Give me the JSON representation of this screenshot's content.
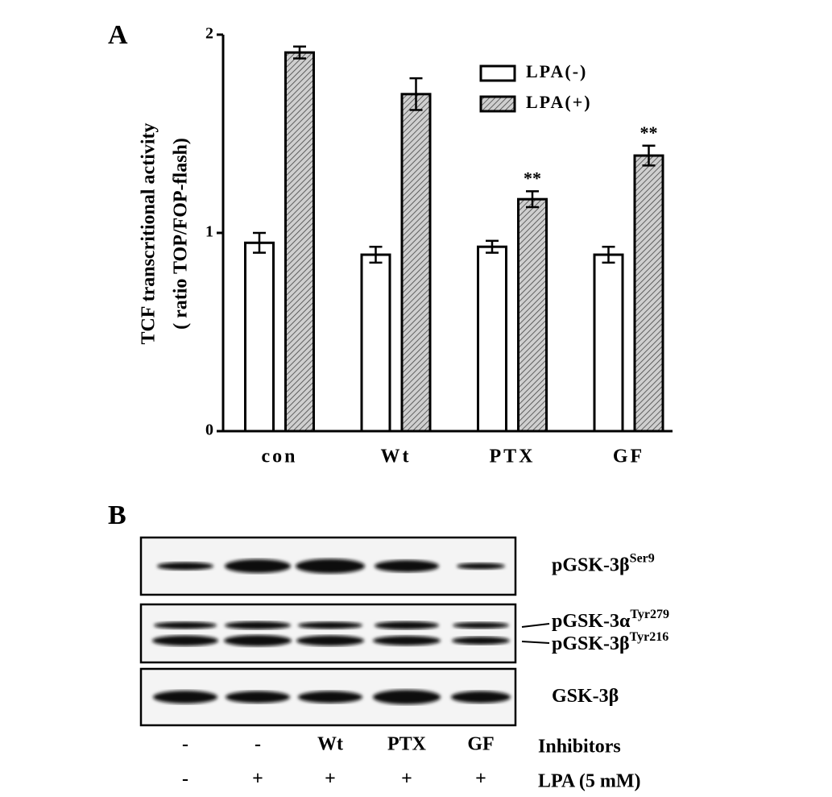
{
  "panel_a": {
    "label": "A"
  },
  "chart_data": {
    "type": "bar",
    "ylabel": [
      "TCF transcritional activity",
      "( ratio TOP/FOP-flash)"
    ],
    "categories": [
      "con",
      "Wt",
      "PTX",
      "GF"
    ],
    "series": [
      {
        "name": "LPA(-)",
        "color": "#ffffff",
        "pattern": "none",
        "values": [
          0.95,
          0.89,
          0.93,
          0.89
        ],
        "errors": [
          0.05,
          0.04,
          0.03,
          0.04
        ]
      },
      {
        "name": "LPA(+)",
        "color": "#bbbbbb",
        "pattern": "hatch",
        "values": [
          1.91,
          1.7,
          1.17,
          1.39
        ],
        "errors": [
          0.03,
          0.08,
          0.04,
          0.05
        ],
        "significance": [
          null,
          null,
          "**",
          "**"
        ]
      }
    ],
    "ylim": [
      0,
      2
    ],
    "yticks": [
      0,
      1,
      2
    ],
    "grid": false,
    "legend": "upper right"
  },
  "panel_b": {
    "label": "B",
    "blots": [
      {
        "labels": [
          {
            "text": "pGSK-3β",
            "sup": "Ser9"
          }
        ]
      },
      {
        "labels": [
          {
            "text": "pGSK-3α",
            "sup": "Tyr279"
          },
          {
            "text": "pGSK-3β",
            "sup": "Tyr216"
          }
        ]
      },
      {
        "labels": [
          {
            "text": "GSK-3β"
          }
        ]
      }
    ],
    "rows": [
      {
        "label": "Inhibitors",
        "lanes": [
          "-",
          "-",
          "Wt",
          "PTX",
          "GF"
        ]
      },
      {
        "label": "LPA (5 mM)",
        "lanes": [
          "-",
          "+",
          "+",
          "+",
          "+"
        ]
      }
    ]
  }
}
